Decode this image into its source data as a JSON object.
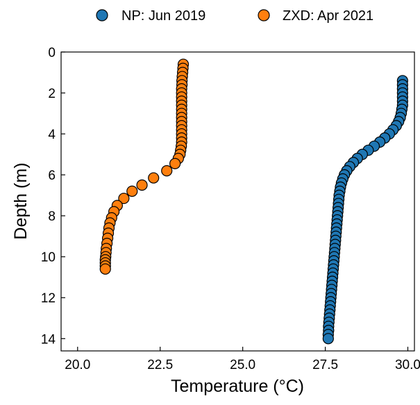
{
  "chart_data": {
    "type": "scatter",
    "title": "",
    "xlabel": "Temperature (°C)",
    "ylabel": "Depth (m)",
    "xlim": [
      19.5,
      30.2
    ],
    "ylim": [
      14.6,
      0
    ],
    "y_inverted": true,
    "xticks": [
      20.0,
      22.5,
      25.0,
      27.5,
      30.0
    ],
    "xtick_labels": [
      "20.0",
      "22.5",
      "25.0",
      "27.5",
      "30.0"
    ],
    "yticks": [
      0,
      2,
      4,
      6,
      8,
      10,
      12,
      14
    ],
    "ytick_labels": [
      "0",
      "2",
      "4",
      "6",
      "8",
      "10",
      "12",
      "14"
    ],
    "grid": false,
    "legend_position": "top-center, outside plot",
    "series": [
      {
        "name": "NP: Jun 2019",
        "color": "#1f77b4",
        "points": [
          [
            29.84,
            1.4
          ],
          [
            29.84,
            1.6
          ],
          [
            29.84,
            1.8
          ],
          [
            29.84,
            2.0
          ],
          [
            29.84,
            2.2
          ],
          [
            29.84,
            2.4
          ],
          [
            29.84,
            2.6
          ],
          [
            29.82,
            2.8
          ],
          [
            29.8,
            3.0
          ],
          [
            29.77,
            3.2
          ],
          [
            29.72,
            3.4
          ],
          [
            29.65,
            3.6
          ],
          [
            29.55,
            3.8
          ],
          [
            29.44,
            4.0
          ],
          [
            29.3,
            4.2
          ],
          [
            29.15,
            4.4
          ],
          [
            28.98,
            4.6
          ],
          [
            28.8,
            4.8
          ],
          [
            28.62,
            5.0
          ],
          [
            28.47,
            5.2
          ],
          [
            28.35,
            5.4
          ],
          [
            28.24,
            5.6
          ],
          [
            28.15,
            5.8
          ],
          [
            28.08,
            6.0
          ],
          [
            28.03,
            6.2
          ],
          [
            27.99,
            6.4
          ],
          [
            27.96,
            6.6
          ],
          [
            27.94,
            6.8
          ],
          [
            27.92,
            7.0
          ],
          [
            27.91,
            7.2
          ],
          [
            27.9,
            7.4
          ],
          [
            27.89,
            7.6
          ],
          [
            27.88,
            7.8
          ],
          [
            27.87,
            8.0
          ],
          [
            27.86,
            8.2
          ],
          [
            27.85,
            8.4
          ],
          [
            27.84,
            8.6
          ],
          [
            27.83,
            8.8
          ],
          [
            27.82,
            9.0
          ],
          [
            27.81,
            9.2
          ],
          [
            27.8,
            9.4
          ],
          [
            27.79,
            9.6
          ],
          [
            27.78,
            9.8
          ],
          [
            27.77,
            10.0
          ],
          [
            27.76,
            10.2
          ],
          [
            27.75,
            10.4
          ],
          [
            27.74,
            10.6
          ],
          [
            27.73,
            10.8
          ],
          [
            27.72,
            11.0
          ],
          [
            27.71,
            11.2
          ],
          [
            27.7,
            11.4
          ],
          [
            27.69,
            11.6
          ],
          [
            27.68,
            11.8
          ],
          [
            27.67,
            12.0
          ],
          [
            27.66,
            12.2
          ],
          [
            27.65,
            12.4
          ],
          [
            27.64,
            12.6
          ],
          [
            27.63,
            12.8
          ],
          [
            27.62,
            13.0
          ],
          [
            27.61,
            13.2
          ],
          [
            27.6,
            13.4
          ],
          [
            27.6,
            13.6
          ],
          [
            27.59,
            13.8
          ],
          [
            27.59,
            14.0
          ]
        ]
      },
      {
        "name": "ZXD: Apr 2021",
        "color": "#ff7f0e",
        "points": [
          [
            23.2,
            0.6
          ],
          [
            23.19,
            0.8
          ],
          [
            23.18,
            1.0
          ],
          [
            23.17,
            1.2
          ],
          [
            23.16,
            1.4
          ],
          [
            23.16,
            1.6
          ],
          [
            23.15,
            1.8
          ],
          [
            23.15,
            2.0
          ],
          [
            23.15,
            2.2
          ],
          [
            23.15,
            2.4
          ],
          [
            23.15,
            2.6
          ],
          [
            23.15,
            2.8
          ],
          [
            23.15,
            3.0
          ],
          [
            23.15,
            3.2
          ],
          [
            23.15,
            3.4
          ],
          [
            23.15,
            3.6
          ],
          [
            23.15,
            3.8
          ],
          [
            23.15,
            4.0
          ],
          [
            23.15,
            4.2
          ],
          [
            23.15,
            4.4
          ],
          [
            23.14,
            4.6
          ],
          [
            23.12,
            4.8
          ],
          [
            23.1,
            5.0
          ],
          [
            23.05,
            5.2
          ],
          [
            22.95,
            5.45
          ],
          [
            22.7,
            5.8
          ],
          [
            22.3,
            6.15
          ],
          [
            21.95,
            6.5
          ],
          [
            21.65,
            6.8
          ],
          [
            21.4,
            7.15
          ],
          [
            21.2,
            7.5
          ],
          [
            21.1,
            7.8
          ],
          [
            21.03,
            8.1
          ],
          [
            20.98,
            8.35
          ],
          [
            20.95,
            8.6
          ],
          [
            20.93,
            8.85
          ],
          [
            20.91,
            9.1
          ],
          [
            20.89,
            9.35
          ],
          [
            20.87,
            9.6
          ],
          [
            20.86,
            9.8
          ],
          [
            20.85,
            10.0
          ],
          [
            20.84,
            10.15
          ],
          [
            20.84,
            10.3
          ],
          [
            20.84,
            10.45
          ],
          [
            20.84,
            10.6
          ]
        ]
      }
    ]
  }
}
